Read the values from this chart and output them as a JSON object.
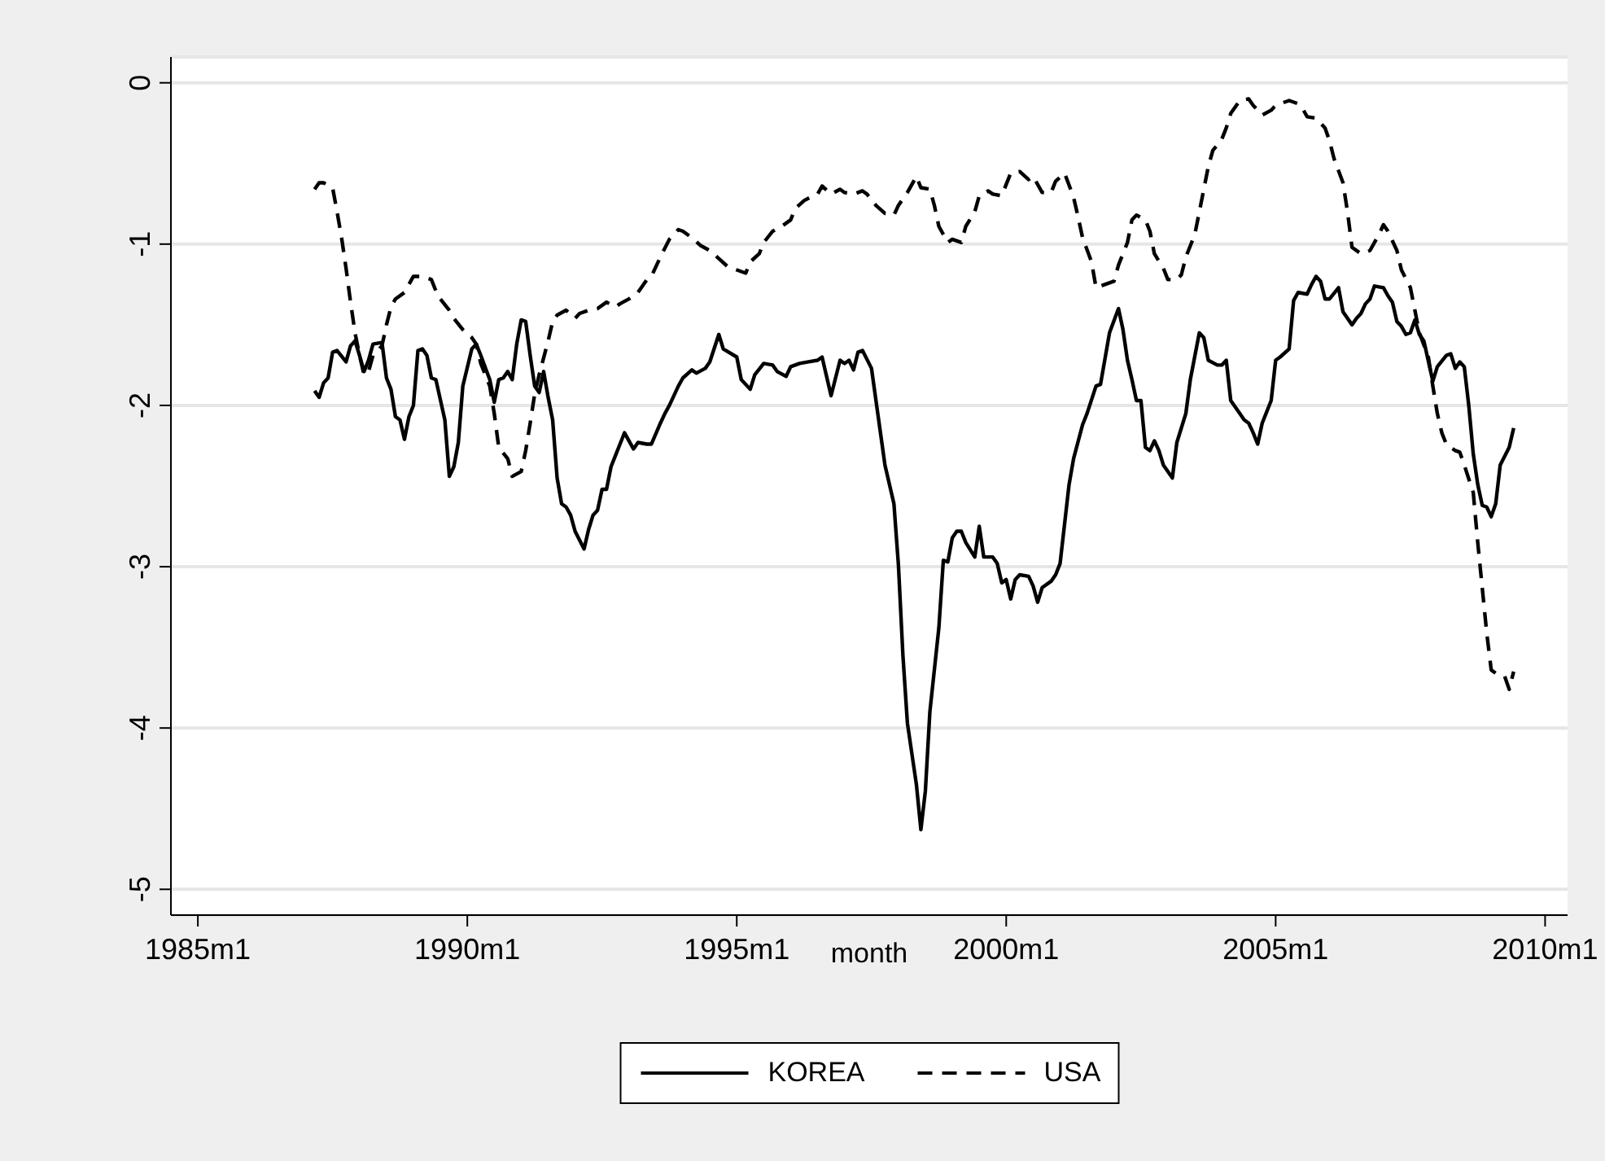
{
  "chart_data": {
    "type": "line",
    "xlabel": "month",
    "xlim": [
      "1984-07",
      "2010-06"
    ],
    "ylim": [
      -5.16,
      0.16
    ],
    "xticks": [
      {
        "value": "1985-01",
        "label": "1985m1"
      },
      {
        "value": "1990-01",
        "label": "1990m1"
      },
      {
        "value": "1995-01",
        "label": "1995m1"
      },
      {
        "value": "2000-01",
        "label": "2000m1"
      },
      {
        "value": "2005-01",
        "label": "2005m1"
      },
      {
        "value": "2010-01",
        "label": "2010m1"
      }
    ],
    "yticks": [
      -5,
      -4,
      -3,
      -2,
      -1,
      0
    ],
    "grid": "y",
    "legend": "bottom",
    "marker": "none",
    "series": [
      {
        "name": "KOREA",
        "color": "#000000",
        "line_style": "solid",
        "x": [
          "1987-03",
          "1987-04",
          "1987-05",
          "1987-06",
          "1987-07",
          "1987-08",
          "1987-10",
          "1987-11",
          "1987-12",
          "1988-01",
          "1988-02",
          "1988-03",
          "1988-04",
          "1988-06",
          "1988-07",
          "1988-08",
          "1988-09",
          "1988-10",
          "1988-11",
          "1988-12",
          "1989-01",
          "1989-02",
          "1989-03",
          "1989-04",
          "1989-05",
          "1989-06",
          "1989-08",
          "1989-09",
          "1989-10",
          "1989-11",
          "1989-12",
          "1990-02",
          "1990-03",
          "1990-04",
          "1990-06",
          "1990-07",
          "1990-08",
          "1990-09",
          "1990-10",
          "1990-11",
          "1990-12",
          "1991-01",
          "1991-02",
          "1991-03",
          "1991-04",
          "1991-05",
          "1991-06",
          "1991-07",
          "1991-08",
          "1991-09",
          "1991-10",
          "1991-11",
          "1991-12",
          "1992-01",
          "1992-03",
          "1992-04",
          "1992-05",
          "1992-06",
          "1992-07",
          "1992-08",
          "1992-09",
          "1992-10",
          "1992-12",
          "1993-02",
          "1993-03",
          "1993-05",
          "1993-06",
          "1993-08",
          "1993-09",
          "1993-10",
          "1993-12",
          "1994-01",
          "1994-03",
          "1994-04",
          "1994-06",
          "1994-07",
          "1994-09",
          "1994-10",
          "1995-01",
          "1995-02",
          "1995-04",
          "1995-05",
          "1995-07",
          "1995-09",
          "1995-10",
          "1995-12",
          "1996-01",
          "1996-03",
          "1996-05",
          "1996-07",
          "1996-08",
          "1996-10",
          "1996-12",
          "1997-01",
          "1997-02",
          "1997-03",
          "1997-04",
          "1997-05",
          "1997-07",
          "1997-09",
          "1997-10",
          "1997-12",
          "1998-01",
          "1998-02",
          "1998-03",
          "1998-05",
          "1998-06",
          "1998-07",
          "1998-08",
          "1998-10",
          "1998-11",
          "1998-12",
          "1999-01",
          "1999-02",
          "1999-03",
          "1999-04",
          "1999-06",
          "1999-07",
          "1999-08",
          "1999-10",
          "1999-11",
          "1999-12",
          "2000-01",
          "2000-02",
          "2000-03",
          "2000-04",
          "2000-06",
          "2000-07",
          "2000-08",
          "2000-09",
          "2000-11",
          "2000-12",
          "2001-01",
          "2001-03",
          "2001-04",
          "2001-06",
          "2001-07",
          "2001-09",
          "2001-10",
          "2001-12",
          "2002-02",
          "2002-03",
          "2002-04",
          "2002-05",
          "2002-06",
          "2002-07",
          "2002-08",
          "2002-09",
          "2002-10",
          "2002-11",
          "2002-12",
          "2003-02",
          "2003-03",
          "2003-05",
          "2003-06",
          "2003-08",
          "2003-09",
          "2003-10",
          "2003-12",
          "2004-01",
          "2004-02",
          "2004-03",
          "2004-05",
          "2004-06",
          "2004-07",
          "2004-08",
          "2004-09",
          "2004-10",
          "2004-12",
          "2005-01",
          "2005-02",
          "2005-04",
          "2005-05",
          "2005-06",
          "2005-08",
          "2005-09",
          "2005-10",
          "2005-11",
          "2005-12",
          "2006-01",
          "2006-03",
          "2006-04",
          "2006-06",
          "2006-07",
          "2006-08",
          "2006-09",
          "2006-10",
          "2006-11",
          "2007-01",
          "2007-02",
          "2007-03",
          "2007-04",
          "2007-05",
          "2007-06",
          "2007-07",
          "2007-08",
          "2007-09",
          "2007-10",
          "2007-12",
          "2008-01",
          "2008-03",
          "2008-04",
          "2008-05",
          "2008-06",
          "2008-07",
          "2008-08",
          "2008-09",
          "2008-10",
          "2008-11",
          "2008-12",
          "2009-01",
          "2009-02",
          "2009-03",
          "2009-05",
          "2009-06"
        ],
        "values": [
          -1.91,
          -1.95,
          -1.86,
          -1.83,
          -1.67,
          -1.66,
          -1.73,
          -1.63,
          -1.6,
          -1.69,
          -1.79,
          -1.72,
          -1.62,
          -1.61,
          -1.83,
          -1.9,
          -2.07,
          -2.09,
          -2.21,
          -2.07,
          -2.0,
          -1.66,
          -1.65,
          -1.69,
          -1.83,
          -1.84,
          -2.09,
          -2.44,
          -2.38,
          -2.23,
          -1.88,
          -1.65,
          -1.62,
          -1.69,
          -1.84,
          -1.98,
          -1.84,
          -1.83,
          -1.79,
          -1.84,
          -1.62,
          -1.47,
          -1.48,
          -1.69,
          -1.88,
          -1.92,
          -1.79,
          -1.95,
          -2.09,
          -2.45,
          -2.61,
          -2.63,
          -2.68,
          -2.78,
          -2.89,
          -2.77,
          -2.68,
          -2.65,
          -2.52,
          -2.52,
          -2.38,
          -2.31,
          -2.17,
          -2.27,
          -2.23,
          -2.24,
          -2.24,
          -2.11,
          -2.05,
          -2.0,
          -1.88,
          -1.83,
          -1.78,
          -1.8,
          -1.77,
          -1.73,
          -1.56,
          -1.65,
          -1.7,
          -1.84,
          -1.9,
          -1.81,
          -1.74,
          -1.75,
          -1.79,
          -1.82,
          -1.76,
          -1.74,
          -1.73,
          -1.72,
          -1.7,
          -1.94,
          -1.72,
          -1.74,
          -1.72,
          -1.78,
          -1.67,
          -1.66,
          -1.77,
          -2.17,
          -2.37,
          -2.61,
          -2.99,
          -3.55,
          -3.97,
          -4.35,
          -4.63,
          -4.39,
          -3.9,
          -3.38,
          -2.96,
          -2.97,
          -2.82,
          -2.78,
          -2.78,
          -2.85,
          -2.94,
          -2.75,
          -2.94,
          -2.94,
          -2.98,
          -3.1,
          -3.08,
          -3.2,
          -3.08,
          -3.05,
          -3.06,
          -3.12,
          -3.22,
          -3.13,
          -3.09,
          -3.05,
          -2.98,
          -2.49,
          -2.33,
          -2.12,
          -2.05,
          -1.88,
          -1.87,
          -1.55,
          -1.4,
          -1.53,
          -1.72,
          -1.84,
          -1.97,
          -1.97,
          -2.26,
          -2.28,
          -2.22,
          -2.28,
          -2.37,
          -2.45,
          -2.23,
          -2.05,
          -1.84,
          -1.55,
          -1.58,
          -1.72,
          -1.75,
          -1.75,
          -1.72,
          -1.97,
          -2.05,
          -2.09,
          -2.11,
          -2.17,
          -2.24,
          -2.11,
          -1.97,
          -1.72,
          -1.7,
          -1.65,
          -1.35,
          -1.3,
          -1.31,
          -1.25,
          -1.2,
          -1.23,
          -1.34,
          -1.34,
          -1.27,
          -1.42,
          -1.5,
          -1.46,
          -1.43,
          -1.37,
          -1.34,
          -1.26,
          -1.27,
          -1.32,
          -1.36,
          -1.48,
          -1.51,
          -1.56,
          -1.55,
          -1.47,
          -1.56,
          -1.6,
          -1.85,
          -1.76,
          -1.69,
          -1.68,
          -1.77,
          -1.73,
          -1.76,
          -2.0,
          -2.3,
          -2.49,
          -2.62,
          -2.63,
          -2.69,
          -2.61,
          -2.37,
          -2.26,
          -2.14
        ]
      },
      {
        "name": "USA",
        "color": "#000000",
        "line_style": "dashed",
        "x": [
          "1987-03",
          "1987-04",
          "1987-05",
          "1987-07",
          "1987-08",
          "1987-09",
          "1987-10",
          "1987-11",
          "1987-12",
          "1988-01",
          "1988-02",
          "1988-03",
          "1988-04",
          "1988-06",
          "1988-07",
          "1988-08",
          "1988-09",
          "1988-11",
          "1988-12",
          "1989-01",
          "1989-03",
          "1989-05",
          "1989-06",
          "1989-07",
          "1989-09",
          "1989-10",
          "1989-12",
          "1990-02",
          "1990-03",
          "1990-04",
          "1990-06",
          "1990-07",
          "1990-08",
          "1990-10",
          "1990-11",
          "1991-01",
          "1991-02",
          "1991-03",
          "1991-04",
          "1991-05",
          "1991-07",
          "1991-08",
          "1991-09",
          "1991-11",
          "1992-01",
          "1992-02",
          "1992-04",
          "1992-06",
          "1992-08",
          "1992-10",
          "1992-11",
          "1993-01",
          "1993-03",
          "1993-05",
          "1993-06",
          "1993-08",
          "1993-10",
          "1993-12",
          "1994-01",
          "1994-03",
          "1994-05",
          "1994-07",
          "1994-09",
          "1994-11",
          "1995-01",
          "1995-03",
          "1995-04",
          "1995-06",
          "1995-07",
          "1995-09",
          "1995-11",
          "1996-01",
          "1996-02",
          "1996-04",
          "1996-06",
          "1996-07",
          "1996-08",
          "1996-10",
          "1996-12",
          "1997-01",
          "1997-03",
          "1997-05",
          "1997-06",
          "1997-08",
          "1997-10",
          "1997-12",
          "1998-01",
          "1998-03",
          "1998-05",
          "1998-06",
          "1998-08",
          "1998-09",
          "1998-10",
          "1998-12",
          "1999-01",
          "1999-03",
          "1999-04",
          "1999-06",
          "1999-07",
          "1999-09",
          "1999-10",
          "1999-12",
          "2000-02",
          "2000-04",
          "2000-06",
          "2000-07",
          "2000-09",
          "2000-11",
          "2000-12",
          "2001-02",
          "2001-04",
          "2001-05",
          "2001-06",
          "2001-08",
          "2001-09",
          "2001-11",
          "2002-01",
          "2002-02",
          "2002-04",
          "2002-05",
          "2002-06",
          "2002-08",
          "2002-09",
          "2002-10",
          "2002-12",
          "2003-01",
          "2003-03",
          "2003-04",
          "2003-05",
          "2003-07",
          "2003-08",
          "2003-09",
          "2003-10",
          "2003-11",
          "2004-01",
          "2004-02",
          "2004-03",
          "2004-05",
          "2004-07",
          "2004-08",
          "2004-10",
          "2004-12",
          "2005-01",
          "2005-02",
          "2005-04",
          "2005-06",
          "2005-07",
          "2005-08",
          "2005-10",
          "2005-12",
          "2006-01",
          "2006-02",
          "2006-04",
          "2006-05",
          "2006-06",
          "2006-08",
          "2006-10",
          "2006-12",
          "2007-01",
          "2007-02",
          "2007-04",
          "2007-05",
          "2007-07",
          "2007-08",
          "2007-09",
          "2007-11",
          "2007-12",
          "2008-01",
          "2008-02",
          "2008-03",
          "2008-05",
          "2008-06",
          "2008-07",
          "2008-09",
          "2008-10",
          "2008-11",
          "2008-12",
          "2009-01",
          "2009-02",
          "2009-04",
          "2009-05",
          "2009-06"
        ],
        "values": [
          -0.66,
          -0.62,
          -0.62,
          -0.65,
          -0.8,
          -0.96,
          -1.15,
          -1.36,
          -1.55,
          -1.69,
          -1.81,
          -1.79,
          -1.69,
          -1.63,
          -1.5,
          -1.39,
          -1.34,
          -1.3,
          -1.25,
          -1.2,
          -1.2,
          -1.22,
          -1.29,
          -1.34,
          -1.41,
          -1.46,
          -1.53,
          -1.58,
          -1.62,
          -1.74,
          -1.88,
          -2.05,
          -2.26,
          -2.33,
          -2.44,
          -2.41,
          -2.28,
          -2.11,
          -1.93,
          -1.81,
          -1.6,
          -1.48,
          -1.44,
          -1.41,
          -1.46,
          -1.43,
          -1.41,
          -1.4,
          -1.36,
          -1.39,
          -1.37,
          -1.34,
          -1.3,
          -1.22,
          -1.2,
          -1.08,
          -0.97,
          -0.91,
          -0.92,
          -0.96,
          -1.01,
          -1.04,
          -1.09,
          -1.14,
          -1.16,
          -1.18,
          -1.11,
          -1.06,
          -0.99,
          -0.92,
          -0.89,
          -0.85,
          -0.78,
          -0.73,
          -0.7,
          -0.69,
          -0.64,
          -0.69,
          -0.66,
          -0.68,
          -0.69,
          -0.67,
          -0.69,
          -0.76,
          -0.81,
          -0.82,
          -0.76,
          -0.68,
          -0.58,
          -0.65,
          -0.66,
          -0.76,
          -0.89,
          -0.99,
          -0.97,
          -0.99,
          -0.89,
          -0.8,
          -0.7,
          -0.67,
          -0.69,
          -0.7,
          -0.56,
          -0.55,
          -0.6,
          -0.58,
          -0.68,
          -0.68,
          -0.61,
          -0.56,
          -0.71,
          -0.83,
          -0.96,
          -1.11,
          -1.27,
          -1.25,
          -1.23,
          -1.13,
          -0.99,
          -0.85,
          -0.82,
          -0.85,
          -0.92,
          -1.06,
          -1.15,
          -1.22,
          -1.22,
          -1.19,
          -1.08,
          -0.94,
          -0.8,
          -0.66,
          -0.52,
          -0.42,
          -0.35,
          -0.28,
          -0.19,
          -0.11,
          -0.1,
          -0.14,
          -0.2,
          -0.17,
          -0.14,
          -0.13,
          -0.11,
          -0.13,
          -0.16,
          -0.21,
          -0.22,
          -0.28,
          -0.36,
          -0.47,
          -0.62,
          -0.8,
          -1.02,
          -1.06,
          -1.04,
          -0.94,
          -0.88,
          -0.92,
          -1.04,
          -1.16,
          -1.27,
          -1.41,
          -1.55,
          -1.7,
          -1.88,
          -2.05,
          -2.17,
          -2.24,
          -2.28,
          -2.29,
          -2.37,
          -2.54,
          -2.85,
          -3.13,
          -3.41,
          -3.64,
          -3.66,
          -3.68,
          -3.76,
          -3.65
        ]
      }
    ]
  }
}
